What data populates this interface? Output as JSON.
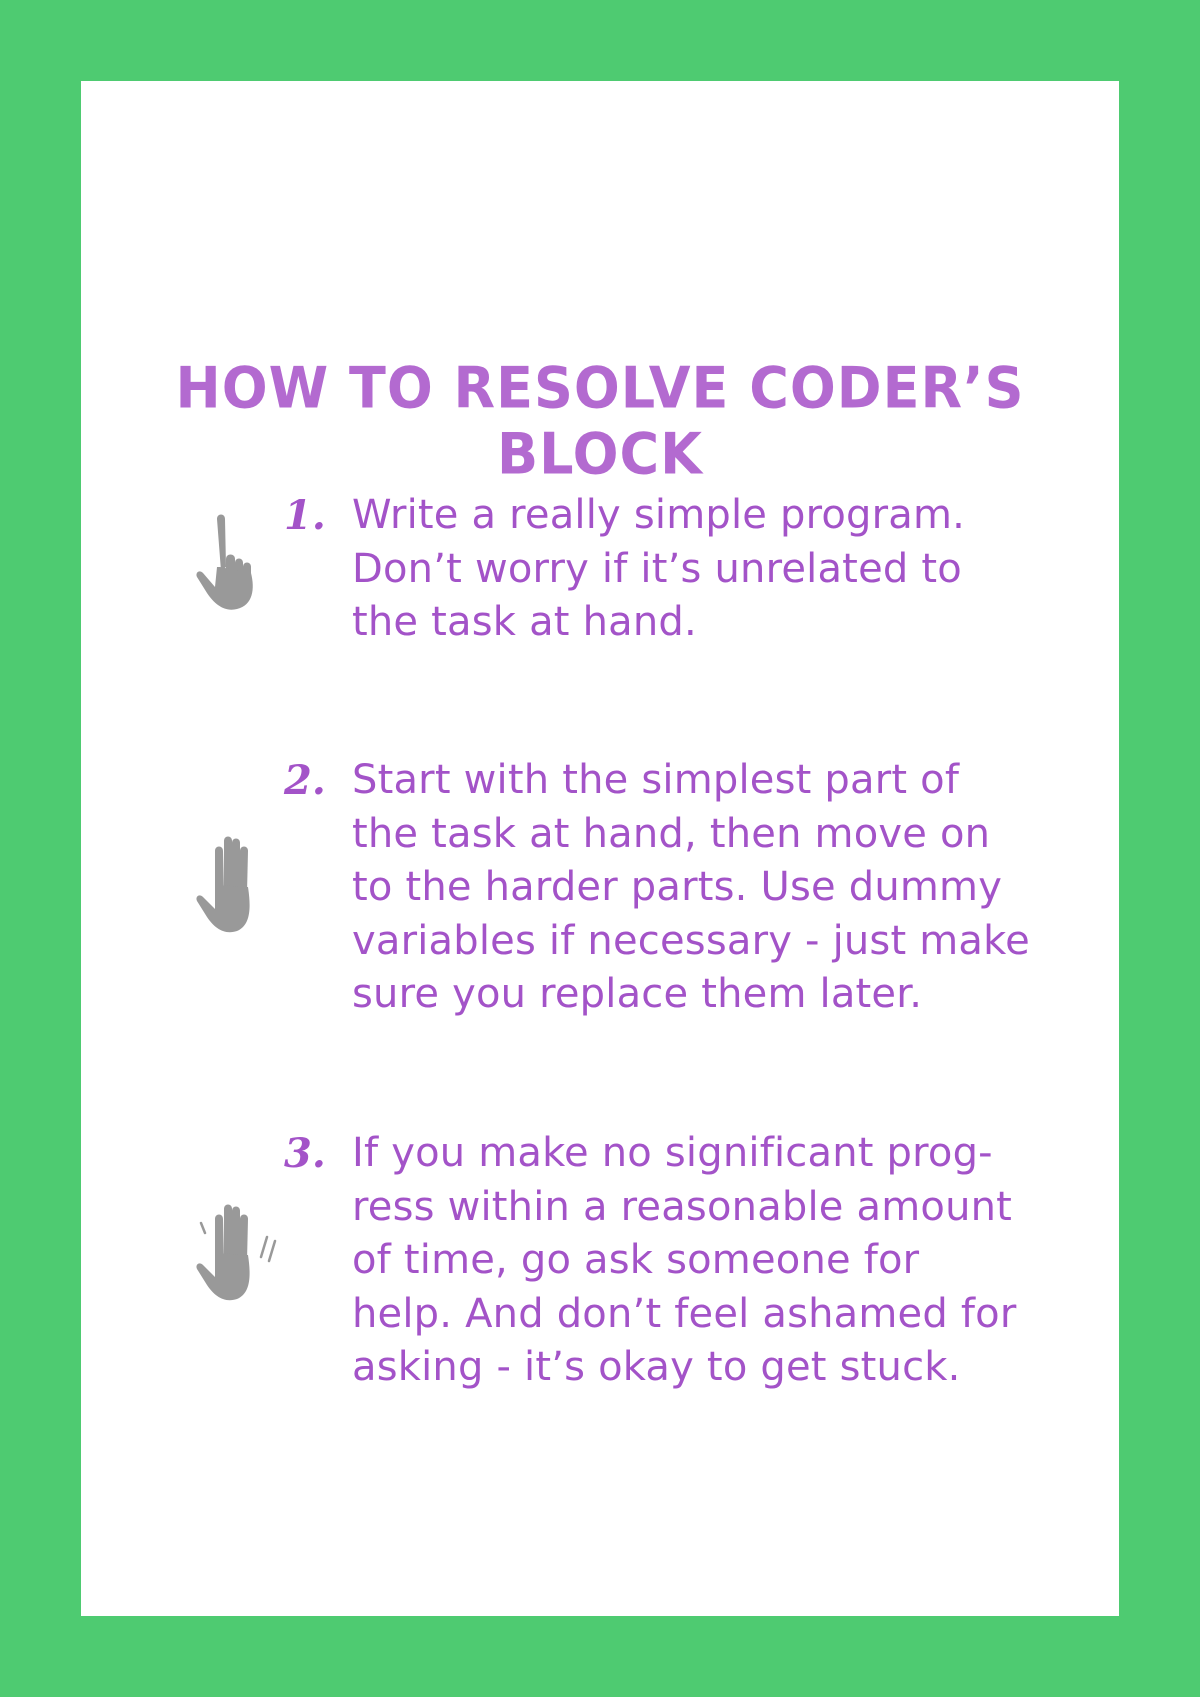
{
  "title": "HOW TO RESOLVE CODER’S BLOCK",
  "colors": {
    "border": "#4ecb71",
    "background": "#ffffff",
    "text": "#a353c8",
    "icon": "#999999"
  },
  "steps": [
    {
      "number": "1.",
      "icon": "pointing-hand-icon",
      "lines": [
        "Write a really simple program.",
        "Don’t worry if it’s unrelated to",
        "the task at hand."
      ]
    },
    {
      "number": "2.",
      "icon": "open-hand-icon",
      "lines": [
        "Start with the simplest part of",
        "the task at hand, then move on",
        "to the harder parts. Use dummy",
        "variables if necessary - just make",
        "sure you replace them later."
      ]
    },
    {
      "number": "3.",
      "icon": "waving-hand-icon",
      "lines": [
        "If you make no significant prog-",
        "ress within a reasonable amount",
        "of time, go ask someone for",
        "help. And don’t feel ashamed for",
        "asking - it’s okay to get stuck."
      ]
    }
  ]
}
